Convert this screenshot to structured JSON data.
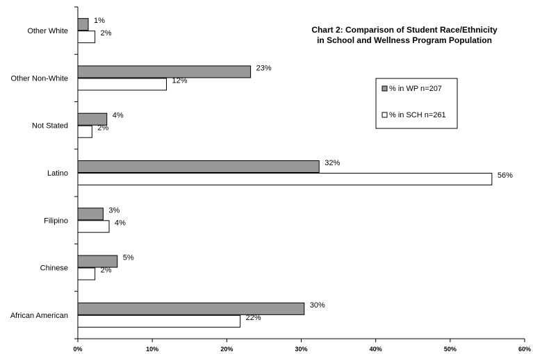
{
  "chart_data": {
    "type": "bar",
    "orientation": "horizontal",
    "title_lines": [
      "Chart 2: Comparison of Student Race/Ethnicity",
      "in School and Wellness Program Population"
    ],
    "categories": [
      "Other White",
      "Other Non-White",
      "Not Stated",
      "Latino",
      "Filipino",
      "Chinese",
      "African American"
    ],
    "series": [
      {
        "name": "% in WP n=207",
        "color": "#999999",
        "values": [
          1.4,
          23.2,
          3.9,
          32.4,
          3.4,
          5.3,
          30.4
        ],
        "labels": [
          "1%",
          "23%",
          "4%",
          "32%",
          "3%",
          "5%",
          "30%"
        ]
      },
      {
        "name": "% in SCH n=261",
        "color": "#ffffff",
        "values": [
          2.3,
          11.9,
          1.9,
          55.6,
          4.2,
          2.3,
          21.8
        ],
        "labels": [
          "2%",
          "12%",
          "2%",
          "56%",
          "4%",
          "2%",
          "22%"
        ]
      }
    ],
    "xlim": [
      0,
      60
    ],
    "x_ticks": [
      0,
      10,
      20,
      30,
      40,
      50,
      60
    ],
    "x_tick_labels": [
      "0%",
      "10%",
      "20%",
      "30%",
      "40%",
      "50%",
      "60%"
    ],
    "grid": false,
    "legend_position": "right"
  }
}
